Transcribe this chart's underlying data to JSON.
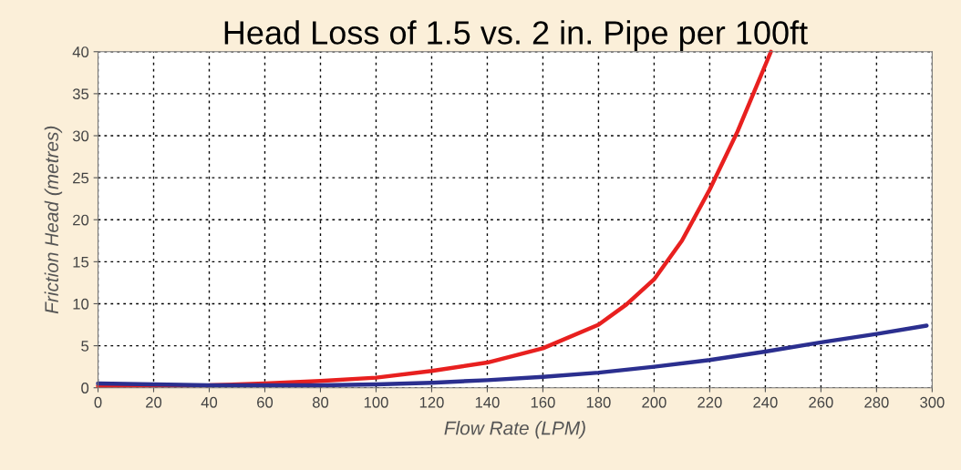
{
  "chart_data": {
    "type": "line",
    "title": "Head Loss of 1.5 vs. 2 in. Pipe per 100ft",
    "xlabel": "Flow Rate (LPM)",
    "ylabel": "Friction Head (metres)",
    "xlim": [
      0,
      300
    ],
    "ylim": [
      0,
      40
    ],
    "xticks": [
      0,
      20,
      40,
      60,
      80,
      100,
      120,
      140,
      160,
      180,
      200,
      220,
      240,
      260,
      280,
      300
    ],
    "yticks": [
      0,
      5,
      10,
      15,
      20,
      25,
      30,
      35,
      40
    ],
    "grid": true,
    "line_style": "solid",
    "marker": "none",
    "series": [
      {
        "color": "#e8201f",
        "x": [
          0,
          20,
          40,
          60,
          80,
          100,
          120,
          140,
          160,
          180,
          190,
          200,
          210,
          220,
          230,
          242
        ],
        "values": [
          0.2,
          0.25,
          0.3,
          0.5,
          0.8,
          1.2,
          2.0,
          3.0,
          4.7,
          7.5,
          9.9,
          12.9,
          17.5,
          23.6,
          30.5,
          40
        ]
      },
      {
        "color": "#2b2f8f",
        "x": [
          0,
          20,
          40,
          60,
          80,
          100,
          120,
          140,
          160,
          180,
          200,
          220,
          240,
          260,
          280,
          298
        ],
        "values": [
          0.5,
          0.4,
          0.3,
          0.3,
          0.3,
          0.4,
          0.6,
          0.9,
          1.3,
          1.8,
          2.5,
          3.3,
          4.3,
          5.4,
          6.4,
          7.4
        ]
      }
    ]
  }
}
